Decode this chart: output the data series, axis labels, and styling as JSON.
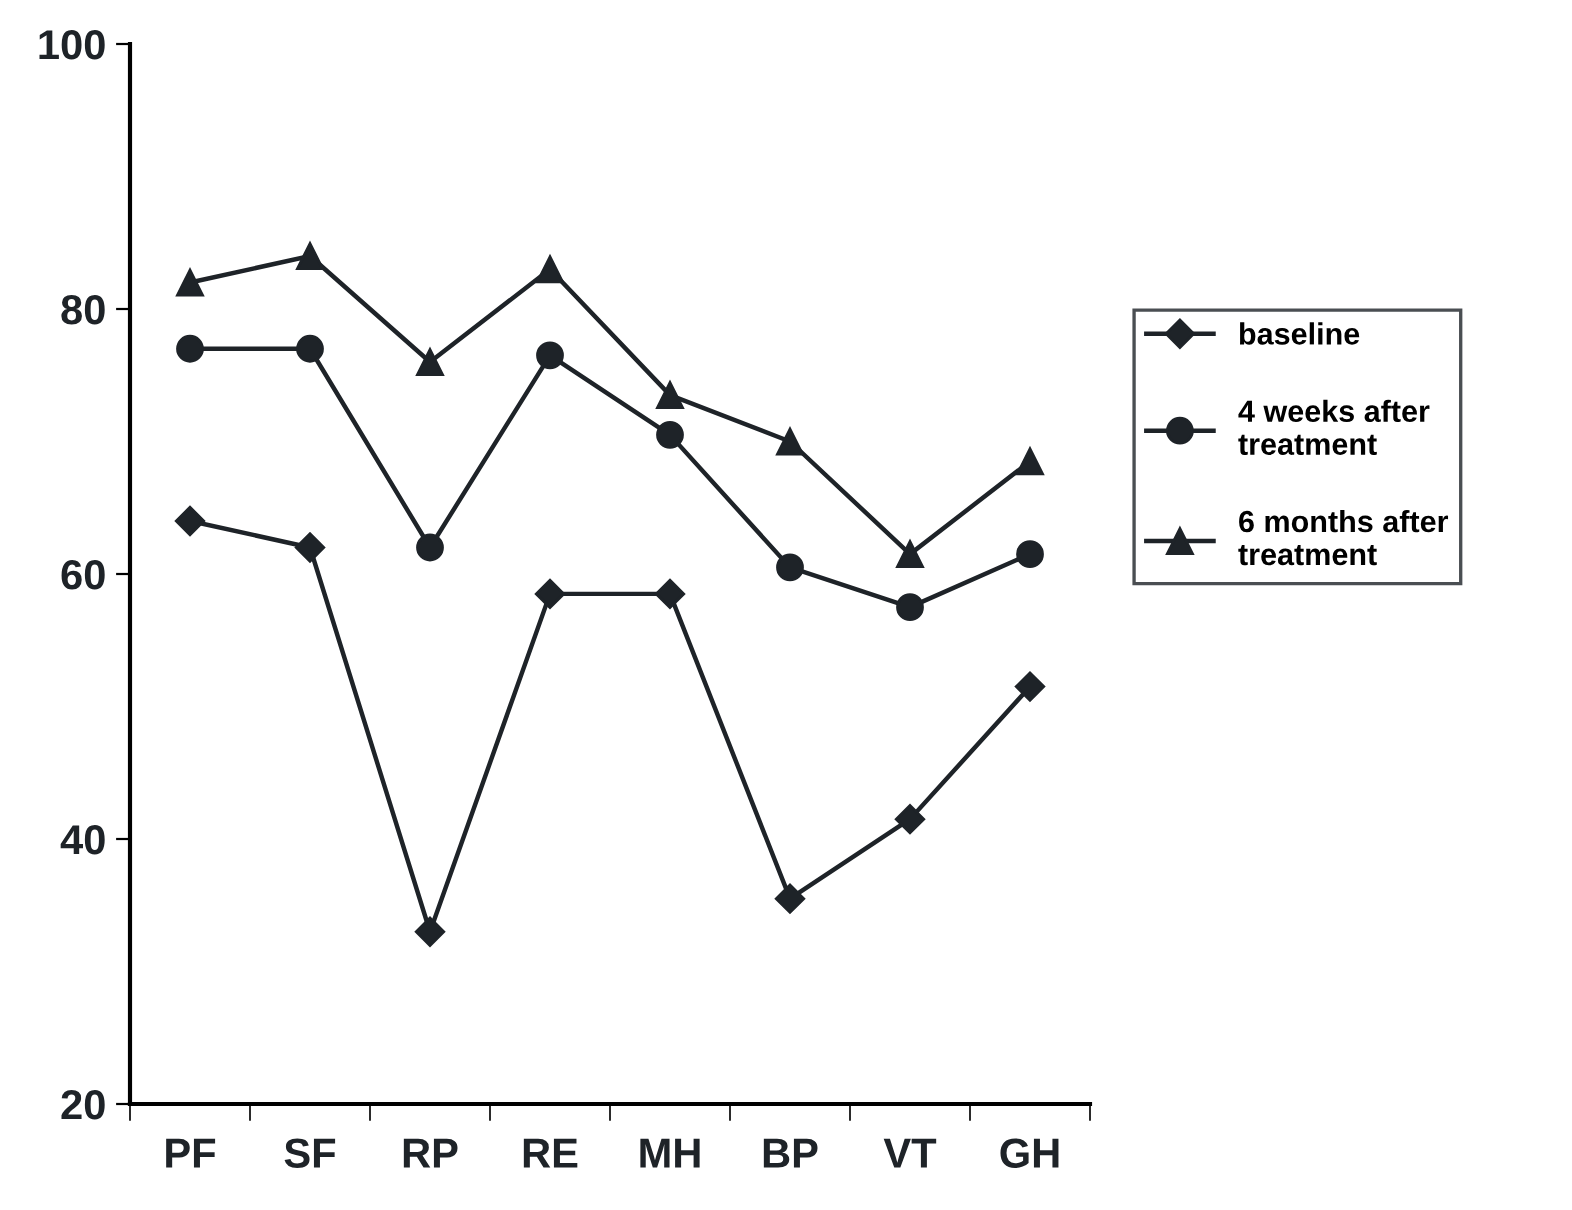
{
  "chart_data": {
    "type": "line",
    "categories": [
      "PF",
      "SF",
      "RP",
      "RE",
      "MH",
      "BP",
      "VT",
      "GH"
    ],
    "series": [
      {
        "name": "baseline",
        "color": "#1e2328",
        "marker": "diamond",
        "values": [
          64,
          62,
          33,
          58.5,
          58.5,
          35.5,
          41.5,
          51.5
        ]
      },
      {
        "name": "4 weeks after treatment",
        "color": "#1e2328",
        "marker": "circle",
        "values": [
          77,
          77,
          62,
          76.5,
          70.5,
          60.5,
          57.5,
          61.5
        ]
      },
      {
        "name": "6 months after treatment",
        "color": "#1e2328",
        "marker": "triangle",
        "values": [
          82,
          84,
          76,
          83,
          73.5,
          70,
          61.5,
          68.5
        ]
      }
    ],
    "ylim": [
      20,
      100
    ],
    "yticks": [
      20,
      40,
      60,
      80,
      100
    ],
    "grid": false,
    "legend": "right",
    "line_style": "solid"
  }
}
